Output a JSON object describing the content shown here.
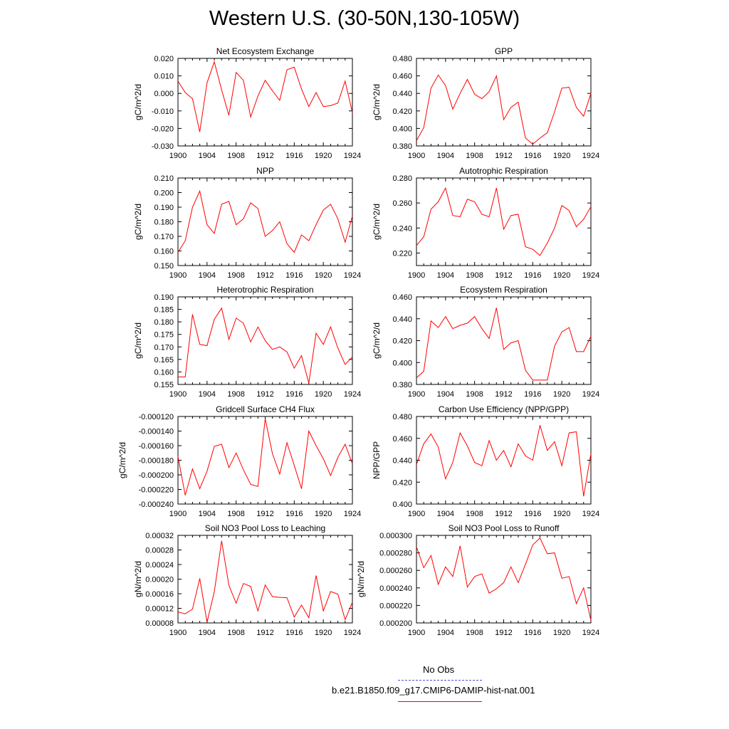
{
  "title": "Western U.S. (30-50N,130-105W)",
  "line_color": "#ff0000",
  "obs_color": "#5050d0",
  "legend": {
    "obs_label": "No Obs",
    "model_label": "b.e21.B1850.f09_g17.CMIP6-DAMIP-hist-nat.001"
  },
  "chart_data": [
    {
      "type": "line",
      "title": "Net Ecosystem Exchange",
      "ylabel": "gC/m^2/d",
      "xlim": [
        1900,
        1924
      ],
      "ylim": [
        -0.03,
        0.02
      ],
      "x_ticks": [
        "1900",
        "1904",
        "1908",
        "1912",
        "1916",
        "1920",
        "1924"
      ],
      "y_ticks": [
        "-0.030",
        "-0.020",
        "-0.010",
        "0.000",
        "0.010",
        "0.020"
      ],
      "x": [
        1900,
        1901,
        1902,
        1903,
        1904,
        1905,
        1906,
        1907,
        1908,
        1909,
        1910,
        1911,
        1912,
        1913,
        1914,
        1915,
        1916,
        1917,
        1918,
        1919,
        1920,
        1921,
        1922,
        1923,
        1924
      ],
      "series": [
        {
          "values": [
            0.007,
            0.0005,
            -0.003,
            -0.022,
            0.006,
            0.018,
            0.002,
            -0.0125,
            0.012,
            0.0075,
            -0.0135,
            -0.0015,
            0.0075,
            0.0015,
            -0.004,
            0.0135,
            0.015,
            0.0025,
            -0.0075,
            0.0005,
            -0.0075,
            -0.007,
            -0.0055,
            0.007,
            -0.011
          ]
        }
      ]
    },
    {
      "type": "line",
      "title": "GPP",
      "ylabel": "gC/m^2/d",
      "xlim": [
        1900,
        1924
      ],
      "ylim": [
        0.38,
        0.48
      ],
      "x_ticks": [
        "1900",
        "1904",
        "1908",
        "1912",
        "1916",
        "1920",
        "1924"
      ],
      "y_ticks": [
        "0.380",
        "0.400",
        "0.420",
        "0.440",
        "0.460",
        "0.480"
      ],
      "x": [
        1900,
        1901,
        1902,
        1903,
        1904,
        1905,
        1906,
        1907,
        1908,
        1909,
        1910,
        1911,
        1912,
        1913,
        1914,
        1915,
        1916,
        1917,
        1918,
        1919,
        1920,
        1921,
        1922,
        1923,
        1924
      ],
      "series": [
        {
          "values": [
            0.386,
            0.401,
            0.446,
            0.461,
            0.449,
            0.422,
            0.44,
            0.456,
            0.439,
            0.434,
            0.442,
            0.46,
            0.41,
            0.424,
            0.43,
            0.389,
            0.382,
            0.389,
            0.395,
            0.419,
            0.446,
            0.447,
            0.424,
            0.414,
            0.44
          ]
        }
      ]
    },
    {
      "type": "line",
      "title": "NPP",
      "ylabel": "gC/m^2/d",
      "xlim": [
        1900,
        1924
      ],
      "ylim": [
        0.15,
        0.21
      ],
      "x_ticks": [
        "1900",
        "1904",
        "1908",
        "1912",
        "1916",
        "1920",
        "1924"
      ],
      "y_ticks": [
        "0.150",
        "0.160",
        "0.170",
        "0.180",
        "0.190",
        "0.200",
        "0.210"
      ],
      "x": [
        1900,
        1901,
        1902,
        1903,
        1904,
        1905,
        1906,
        1907,
        1908,
        1909,
        1910,
        1911,
        1912,
        1913,
        1914,
        1915,
        1916,
        1917,
        1918,
        1919,
        1920,
        1921,
        1922,
        1923,
        1924
      ],
      "series": [
        {
          "values": [
            0.159,
            0.167,
            0.19,
            0.201,
            0.178,
            0.172,
            0.192,
            0.194,
            0.178,
            0.182,
            0.193,
            0.189,
            0.17,
            0.174,
            0.18,
            0.165,
            0.159,
            0.171,
            0.167,
            0.178,
            0.188,
            0.192,
            0.182,
            0.166,
            0.184
          ]
        }
      ]
    },
    {
      "type": "line",
      "title": "Autotrophic Respiration",
      "ylabel": "gC/m^2/d",
      "xlim": [
        1900,
        1924
      ],
      "ylim": [
        0.21,
        0.28
      ],
      "x_ticks": [
        "1900",
        "1904",
        "1908",
        "1912",
        "1916",
        "1920",
        "1924"
      ],
      "y_ticks": [
        "0.220",
        "0.240",
        "0.260",
        "0.280"
      ],
      "x": [
        1900,
        1901,
        1902,
        1903,
        1904,
        1905,
        1906,
        1907,
        1908,
        1909,
        1910,
        1911,
        1912,
        1913,
        1914,
        1915,
        1916,
        1917,
        1918,
        1919,
        1920,
        1921,
        1922,
        1923,
        1924
      ],
      "series": [
        {
          "values": [
            0.226,
            0.233,
            0.255,
            0.261,
            0.272,
            0.25,
            0.249,
            0.263,
            0.261,
            0.251,
            0.249,
            0.272,
            0.239,
            0.25,
            0.251,
            0.225,
            0.223,
            0.218,
            0.228,
            0.24,
            0.258,
            0.254,
            0.241,
            0.247,
            0.257
          ]
        }
      ]
    },
    {
      "type": "line",
      "title": "Heterotrophic Respiration",
      "ylabel": "gC/m^2/d",
      "xlim": [
        1900,
        1924
      ],
      "ylim": [
        0.155,
        0.19
      ],
      "x_ticks": [
        "1900",
        "1904",
        "1908",
        "1912",
        "1916",
        "1920",
        "1924"
      ],
      "y_ticks": [
        "0.155",
        "0.160",
        "0.165",
        "0.170",
        "0.175",
        "0.180",
        "0.185",
        "0.190"
      ],
      "x": [
        1900,
        1901,
        1902,
        1903,
        1904,
        1905,
        1906,
        1907,
        1908,
        1909,
        1910,
        1911,
        1912,
        1913,
        1914,
        1915,
        1916,
        1917,
        1918,
        1919,
        1920,
        1921,
        1922,
        1923,
        1924
      ],
      "series": [
        {
          "values": [
            0.158,
            0.158,
            0.183,
            0.171,
            0.1705,
            0.181,
            0.1855,
            0.173,
            0.1815,
            0.1795,
            0.172,
            0.178,
            0.1725,
            0.169,
            0.17,
            0.168,
            0.1615,
            0.1665,
            0.1555,
            0.1755,
            0.171,
            0.178,
            0.1695,
            0.163,
            0.166
          ]
        }
      ]
    },
    {
      "type": "line",
      "title": "Ecosystem Respiration",
      "ylabel": "gC/m^2/d",
      "xlim": [
        1900,
        1924
      ],
      "ylim": [
        0.38,
        0.46
      ],
      "x_ticks": [
        "1900",
        "1904",
        "1908",
        "1912",
        "1916",
        "1920",
        "1924"
      ],
      "y_ticks": [
        "0.380",
        "0.400",
        "0.420",
        "0.440",
        "0.460"
      ],
      "x": [
        1900,
        1901,
        1902,
        1903,
        1904,
        1905,
        1906,
        1907,
        1908,
        1909,
        1910,
        1911,
        1912,
        1913,
        1914,
        1915,
        1916,
        1917,
        1918,
        1919,
        1920,
        1921,
        1922,
        1923,
        1924
      ],
      "series": [
        {
          "values": [
            0.386,
            0.392,
            0.438,
            0.432,
            0.442,
            0.431,
            0.434,
            0.436,
            0.442,
            0.431,
            0.422,
            0.45,
            0.412,
            0.418,
            0.42,
            0.393,
            0.384,
            0.384,
            0.384,
            0.415,
            0.428,
            0.432,
            0.41,
            0.41,
            0.424
          ]
        }
      ]
    },
    {
      "type": "line",
      "title": "Gridcell Surface CH4 Flux",
      "ylabel": "gC/m^2/d",
      "xlim": [
        1900,
        1924
      ],
      "ylim": [
        -0.00024,
        -0.00012
      ],
      "x_ticks": [
        "1900",
        "1904",
        "1908",
        "1912",
        "1916",
        "1920",
        "1924"
      ],
      "y_ticks": [
        "-0.000240",
        "-0.000220",
        "-0.000200",
        "-0.000180",
        "-0.000160",
        "-0.000140",
        "-0.000120"
      ],
      "x": [
        1900,
        1901,
        1902,
        1903,
        1904,
        1905,
        1906,
        1907,
        1908,
        1909,
        1910,
        1911,
        1912,
        1913,
        1914,
        1915,
        1916,
        1917,
        1918,
        1919,
        1920,
        1921,
        1922,
        1923,
        1924
      ],
      "series": [
        {
          "values": [
            -0.000175,
            -0.000228,
            -0.000192,
            -0.000219,
            -0.000195,
            -0.000161,
            -0.000158,
            -0.00019,
            -0.00017,
            -0.000193,
            -0.000213,
            -0.000216,
            -0.000123,
            -0.000171,
            -0.000199,
            -0.000156,
            -0.000187,
            -0.000219,
            -0.00014,
            -0.00016,
            -0.000178,
            -0.000201,
            -0.000176,
            -0.000158,
            -0.000185
          ]
        }
      ]
    },
    {
      "type": "line",
      "title": "Carbon Use Efficiency (NPP/GPP)",
      "ylabel": "NPP/GPP",
      "xlim": [
        1900,
        1924
      ],
      "ylim": [
        0.4,
        0.48
      ],
      "x_ticks": [
        "1900",
        "1904",
        "1908",
        "1912",
        "1916",
        "1920",
        "1924"
      ],
      "y_ticks": [
        "0.400",
        "0.420",
        "0.440",
        "0.460",
        "0.480"
      ],
      "x": [
        1900,
        1901,
        1902,
        1903,
        1904,
        1905,
        1906,
        1907,
        1908,
        1909,
        1910,
        1911,
        1912,
        1913,
        1914,
        1915,
        1916,
        1917,
        1918,
        1919,
        1920,
        1921,
        1922,
        1923,
        1924
      ],
      "series": [
        {
          "values": [
            0.436,
            0.455,
            0.464,
            0.452,
            0.423,
            0.438,
            0.465,
            0.453,
            0.438,
            0.435,
            0.458,
            0.44,
            0.449,
            0.434,
            0.455,
            0.444,
            0.44,
            0.472,
            0.449,
            0.457,
            0.435,
            0.465,
            0.466,
            0.407,
            0.446
          ]
        }
      ]
    },
    {
      "type": "line",
      "title": "Soil NO3 Pool Loss to Leaching",
      "ylabel": "gN/m^2/d",
      "xlim": [
        1900,
        1924
      ],
      "ylim": [
        8e-05,
        0.00032
      ],
      "x_ticks": [
        "1900",
        "1904",
        "1908",
        "1912",
        "1916",
        "1920",
        "1924"
      ],
      "y_ticks": [
        "0.00008",
        "0.00012",
        "0.00016",
        "0.00020",
        "0.00024",
        "0.00028",
        "0.00032"
      ],
      "x": [
        1900,
        1901,
        1902,
        1903,
        1904,
        1905,
        1906,
        1907,
        1908,
        1909,
        1910,
        1911,
        1912,
        1913,
        1914,
        1915,
        1916,
        1917,
        1918,
        1919,
        1920,
        1921,
        1922,
        1923,
        1924
      ],
      "series": [
        {
          "values": [
            0.00011,
            0.000105,
            0.000118,
            0.000202,
            8.2e-05,
            0.000165,
            0.000305,
            0.000183,
            0.000134,
            0.000188,
            0.00018,
            0.000113,
            0.000184,
            0.000152,
            0.00015,
            0.000149,
            9.6e-05,
            0.000129,
            9.4e-05,
            0.00021,
            0.000113,
            0.000166,
            0.000159,
            8.9e-05,
            0.000137
          ]
        }
      ]
    },
    {
      "type": "line",
      "title": "Soil NO3 Pool Loss to Runoff",
      "ylabel": "gN/m^2/d",
      "xlim": [
        1900,
        1924
      ],
      "ylim": [
        0.0002,
        0.0003
      ],
      "x_ticks": [
        "1900",
        "1904",
        "1908",
        "1912",
        "1916",
        "1920",
        "1924"
      ],
      "y_ticks": [
        "0.000200",
        "0.000220",
        "0.000240",
        "0.000260",
        "0.000280",
        "0.000300"
      ],
      "x": [
        1900,
        1901,
        1902,
        1903,
        1904,
        1905,
        1906,
        1907,
        1908,
        1909,
        1910,
        1911,
        1912,
        1913,
        1914,
        1915,
        1916,
        1917,
        1918,
        1919,
        1920,
        1921,
        1922,
        1923,
        1924
      ],
      "series": [
        {
          "values": [
            0.000287,
            0.000263,
            0.000277,
            0.000244,
            0.000264,
            0.000253,
            0.000288,
            0.000241,
            0.000253,
            0.000256,
            0.000234,
            0.000239,
            0.000246,
            0.000264,
            0.000246,
            0.000267,
            0.000289,
            0.000297,
            0.000279,
            0.00028,
            0.000251,
            0.000253,
            0.000222,
            0.00024,
            0.000203
          ]
        }
      ]
    }
  ]
}
